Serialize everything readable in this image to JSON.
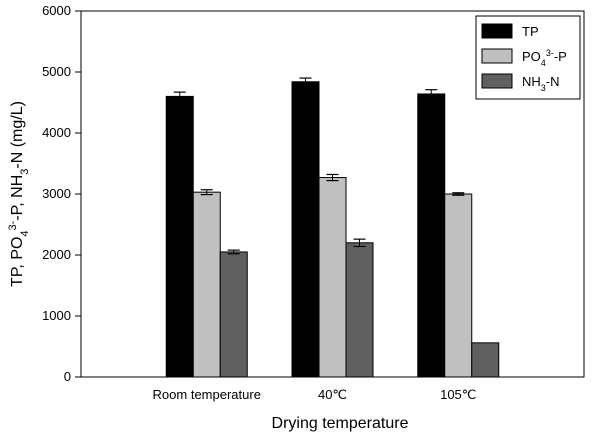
{
  "chart_data": {
    "type": "bar",
    "xlabel": "Drying temperature",
    "ylabel": {
      "parts": [
        {
          "t": "TP, PO",
          "s": ""
        },
        {
          "t": "4",
          "s": "sub"
        },
        {
          "t": "3-",
          "s": "sup"
        },
        {
          "t": "-P, NH",
          "s": ""
        },
        {
          "t": "3",
          "s": "sub"
        },
        {
          "t": "-N (mg/L)",
          "s": ""
        }
      ]
    },
    "ylim": [
      0,
      6000
    ],
    "yticks": [
      0,
      1000,
      2000,
      3000,
      4000,
      5000,
      6000
    ],
    "categories": [
      "Room temperature",
      "40℃",
      "105℃"
    ],
    "legend_position": "top-right",
    "series": [
      {
        "name": "TP",
        "color": "#000000",
        "values": [
          4600,
          4840,
          4640
        ],
        "errors": [
          70,
          60,
          70
        ],
        "legend_parts": [
          {
            "t": "TP",
            "s": ""
          }
        ]
      },
      {
        "name": "PO43--P",
        "color": "#c0c0c0",
        "values": [
          3030,
          3270,
          3000
        ],
        "errors": [
          40,
          50,
          20
        ],
        "legend_parts": [
          {
            "t": "PO",
            "s": ""
          },
          {
            "t": "4",
            "s": "sub"
          },
          {
            "t": "3-",
            "s": "sup"
          },
          {
            "t": "-P",
            "s": ""
          }
        ]
      },
      {
        "name": "NH3-N",
        "color": "#606060",
        "values": [
          2050,
          2200,
          560
        ],
        "errors": [
          30,
          60,
          0
        ],
        "legend_parts": [
          {
            "t": "NH",
            "s": ""
          },
          {
            "t": "3",
            "s": "sub"
          },
          {
            "t": "-N",
            "s": ""
          }
        ]
      }
    ]
  }
}
